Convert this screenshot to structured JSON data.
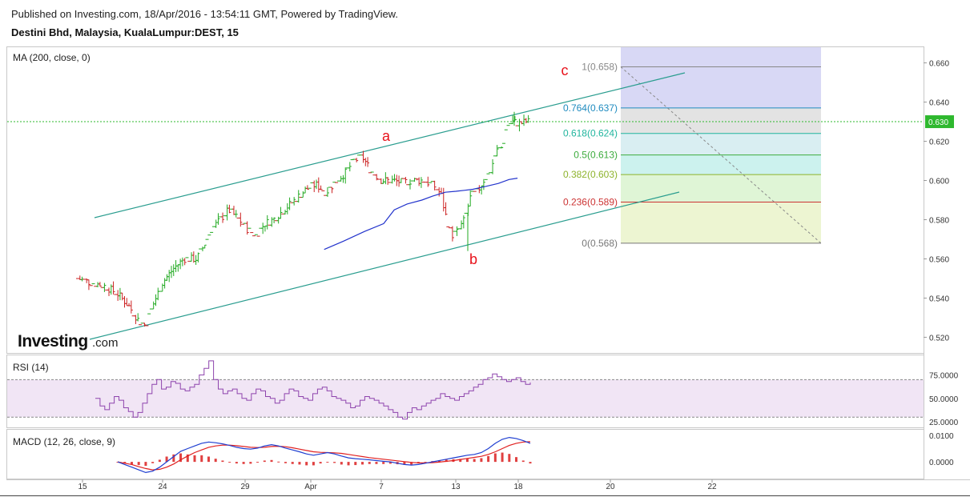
{
  "header": {
    "published": "Published on Investing.com, 18/Apr/2016 - 13:54:11 GMT, Powered by TradingView.",
    "symbol": "Destini Bhd, Malaysia, KualaLumpur:DEST, 15"
  },
  "logo": {
    "brand": "Investing",
    "suffix": ".com"
  },
  "colors": {
    "up": "#22aa22",
    "down": "#cc2222",
    "ma": "#2233cc",
    "channel": "#2a9d8f",
    "rsi": "#8e44ad",
    "macd": "#1f3fd1",
    "signal": "#e02020",
    "hist": "#e04040",
    "last_price_bg": "#2eb82e",
    "wave_label": "#e8121b"
  },
  "chart_data": [
    {
      "type": "ohlc",
      "panel": "price",
      "title": "MA (200, close, 0)",
      "ylim": [
        0.512,
        0.668
      ],
      "yticks": [
        "0.660",
        "0.640",
        "0.620",
        "0.600",
        "0.580",
        "0.560",
        "0.540",
        "0.520"
      ],
      "xlim_days": [
        13.3,
        24.2
      ],
      "xticks": [
        {
          "label": "15",
          "day": 15
        },
        {
          "label": "24",
          "day": 24
        },
        {
          "label": "29",
          "day": 29
        },
        {
          "label": "Apr",
          "day": 32
        },
        {
          "label": "7",
          "day": 38
        },
        {
          "label": "13",
          "day": 44
        },
        {
          "label": "18",
          "day": 49
        },
        {
          "label": "20",
          "day": 51
        },
        {
          "label": "22",
          "day": 53
        }
      ],
      "last_price": {
        "label": "0.630",
        "value": 0.63
      },
      "price_path": [
        [
          15.0,
          0.55
        ],
        [
          15.6,
          0.548
        ],
        [
          16.3,
          0.546
        ],
        [
          16.9,
          0.542
        ],
        [
          17.4,
          0.536
        ],
        [
          17.9,
          0.528
        ],
        [
          18.2,
          0.526
        ],
        [
          18.6,
          0.538
        ],
        [
          19.0,
          0.548
        ],
        [
          19.5,
          0.555
        ],
        [
          20.0,
          0.56
        ],
        [
          20.6,
          0.56
        ],
        [
          21.0,
          0.568
        ],
        [
          21.3,
          0.575
        ],
        [
          21.7,
          0.58
        ],
        [
          22.1,
          0.585
        ],
        [
          22.6,
          0.58
        ],
        [
          23.0,
          0.575
        ],
        [
          23.4,
          0.572
        ],
        [
          23.8,
          0.578
        ],
        [
          24.2,
          0.58
        ],
        [
          24.7,
          0.585
        ],
        [
          25.2,
          0.59
        ],
        [
          25.7,
          0.595
        ],
        [
          26.2,
          0.598
        ],
        [
          26.7,
          0.594
        ],
        [
          27.2,
          0.6
        ],
        [
          27.6,
          0.604
        ],
        [
          28.0,
          0.61
        ],
        [
          28.4,
          0.612
        ],
        [
          28.8,
          0.605
        ],
        [
          29.3,
          0.6
        ],
        [
          29.8,
          0.6
        ],
        [
          30.3,
          0.599
        ],
        [
          30.8,
          0.6
        ],
        [
          31.3,
          0.6
        ],
        [
          31.8,
          0.597
        ],
        [
          32.1,
          0.593
        ],
        [
          32.3,
          0.583
        ],
        [
          32.6,
          0.572
        ],
        [
          32.9,
          0.574
        ],
        [
          33.2,
          0.58
        ],
        [
          33.5,
          0.592
        ],
        [
          33.8,
          0.594
        ],
        [
          34.1,
          0.6
        ],
        [
          34.4,
          0.604
        ],
        [
          34.7,
          0.615
        ],
        [
          35.0,
          0.617
        ],
        [
          35.2,
          0.628
        ],
        [
          35.5,
          0.63
        ],
        [
          35.8,
          0.629
        ],
        [
          36.1,
          0.63
        ],
        [
          36.3,
          0.63
        ]
      ],
      "ma_path": [
        [
          26.6,
          0.5648
        ],
        [
          27.5,
          0.569
        ],
        [
          28.5,
          0.574
        ],
        [
          29.4,
          0.578
        ],
        [
          29.9,
          0.585
        ],
        [
          30.5,
          0.588
        ],
        [
          31.2,
          0.59
        ],
        [
          31.7,
          0.592
        ],
        [
          32.3,
          0.594
        ],
        [
          32.8,
          0.5945
        ],
        [
          33.2,
          0.595
        ],
        [
          33.6,
          0.5955
        ],
        [
          34.2,
          0.597
        ],
        [
          34.8,
          0.5985
        ],
        [
          35.3,
          0.6005
        ],
        [
          35.7,
          0.6012
        ]
      ],
      "channel_upper": [
        [
          15.8,
          0.579
        ],
        [
          41.2,
          0.6545
        ]
      ],
      "channel_lower": [
        [
          15.4,
          0.515
        ],
        [
          40.9,
          0.592
        ]
      ],
      "fib_levels": [
        {
          "label": "1(0.658)",
          "value": 0.658,
          "color": "#888888",
          "fill": "#d8d8f5"
        },
        {
          "label": "0.764(0.637)",
          "value": 0.637,
          "color": "#1f8bbf",
          "fill": "#e3e3e3"
        },
        {
          "label": "0.618(0.624)",
          "value": 0.624,
          "color": "#21b59e",
          "fill": "#d9eef2"
        },
        {
          "label": "0.5(0.613)",
          "value": 0.613,
          "color": "#3cab3c",
          "fill": "#ccf2ee"
        },
        {
          "label": "0.382(0.603)",
          "value": 0.603,
          "color": "#8db32b",
          "fill": "#dff5d6"
        },
        {
          "label": "0.236(0.589)",
          "value": 0.589,
          "color": "#cc3333",
          "fill": "#edf5d2"
        },
        {
          "label": "0(0.568)",
          "value": 0.568,
          "color": "#777777",
          "fill": "#f5d6d6"
        }
      ],
      "fib_top_fill": "#d8d8f5",
      "fib_range_days": [
        41.6,
        47.8
      ],
      "fib_trend_line": [
        [
          41.6,
          0.658
        ],
        [
          47.8,
          0.568
        ]
      ],
      "wave_labels": [
        {
          "label": "a",
          "day": 27.8,
          "value": 0.619
        },
        {
          "label": "b",
          "day": 33.1,
          "value": 0.56
        },
        {
          "label": "c",
          "day": 39.3,
          "value": 0.654
        }
      ]
    },
    {
      "type": "line",
      "panel": "rsi",
      "title": "RSI (14)",
      "ylim": [
        20,
        95
      ],
      "yticks": [
        "75.0000",
        "50.0000",
        "25.0000"
      ],
      "band": [
        30,
        70
      ],
      "series": [
        {
          "values": [
            50,
            42,
            38,
            45,
            52,
            48,
            40,
            36,
            30,
            35,
            45,
            55,
            65,
            70,
            60,
            62,
            68,
            66,
            60,
            58,
            62,
            65,
            75,
            82,
            90,
            70,
            60,
            55,
            58,
            60,
            55,
            50,
            48,
            55,
            60,
            58,
            52,
            50,
            45,
            48,
            55,
            60,
            58,
            52,
            50,
            48,
            55,
            60,
            62,
            58,
            52,
            50,
            48,
            45,
            40,
            42,
            48,
            52,
            50,
            48,
            45,
            42,
            38,
            35,
            30,
            28,
            35,
            40,
            38,
            42,
            45,
            48,
            50,
            55,
            52,
            50,
            48,
            52,
            55,
            58,
            62,
            65,
            70,
            72,
            76,
            73,
            70,
            68,
            70,
            72,
            68,
            65,
            67
          ]
        }
      ]
    },
    {
      "type": "line",
      "panel": "macd",
      "title": "MACD (12, 26, close, 9)",
      "ylim": [
        -0.006,
        0.0118
      ],
      "yticks": [
        "0.0100",
        "0.0000"
      ],
      "series": [
        {
          "values": [
            0.0,
            -0.001,
            -0.002,
            -0.003,
            -0.004,
            -0.0035,
            -0.002,
            0.0,
            0.002,
            0.004,
            0.005,
            0.006,
            0.007,
            0.0075,
            0.0072,
            0.0068,
            0.0062,
            0.0055,
            0.005,
            0.0048,
            0.0052,
            0.006,
            0.0065,
            0.006,
            0.0052,
            0.0045,
            0.0038,
            0.003,
            0.0025,
            0.003,
            0.0035,
            0.003,
            0.0022,
            0.0015,
            0.0012,
            0.001,
            0.0008,
            0.0005,
            0.0002,
            0.0,
            -0.0005,
            -0.001,
            -0.0012,
            -0.001,
            -0.0005,
            0.0,
            0.0005,
            0.001,
            0.0015,
            0.002,
            0.0025,
            0.0028,
            0.0035,
            0.005,
            0.007,
            0.0085,
            0.0092,
            0.0088,
            0.008,
            0.007
          ]
        },
        {
          "values": [
            0.0,
            -0.0005,
            -0.001,
            -0.0018,
            -0.0025,
            -0.003,
            -0.0028,
            -0.002,
            -0.0008,
            0.0008,
            0.0022,
            0.0035,
            0.0045,
            0.0055,
            0.006,
            0.0063,
            0.0063,
            0.0061,
            0.0058,
            0.0055,
            0.0054,
            0.0055,
            0.0058,
            0.0059,
            0.0057,
            0.0053,
            0.0048,
            0.0043,
            0.0038,
            0.0036,
            0.0035,
            0.0034,
            0.0032,
            0.0028,
            0.0024,
            0.002,
            0.0016,
            0.0013,
            0.001,
            0.0007,
            0.0004,
            0.0001,
            -0.0002,
            -0.0004,
            -0.0004,
            -0.0003,
            -0.0001,
            0.0002,
            0.0005,
            0.0009,
            0.0013,
            0.0017,
            0.0021,
            0.0028,
            0.0038,
            0.005,
            0.0062,
            0.007,
            0.0075,
            0.0076
          ]
        }
      ]
    }
  ]
}
